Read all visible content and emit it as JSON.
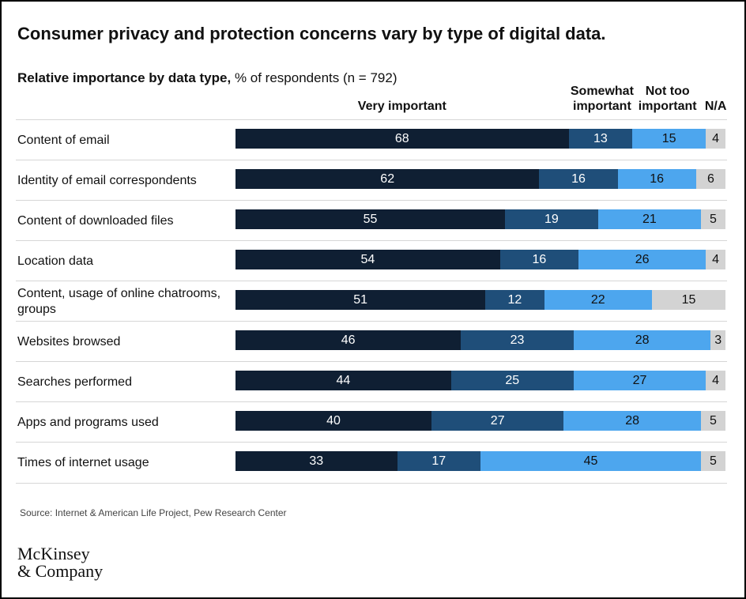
{
  "title": "Consumer privacy and protection concerns vary by type of digital data.",
  "subtitle": {
    "bold": "Relative importance by data type,",
    "normal": "% of respondents (n = 792)"
  },
  "colors": {
    "very_important": "#0f1f33",
    "somewhat_important": "#1f4e79",
    "not_too_important": "#4da6ee",
    "na": "#d3d3d3"
  },
  "chart_data": {
    "type": "bar",
    "orientation": "horizontal",
    "stacked": true,
    "categories": [
      "Content of email",
      "Identity of email correspondents",
      "Content of downloaded files",
      "Location data",
      "Content, usage of online chatrooms, groups",
      "Websites browsed",
      "Searches performed",
      "Apps and programs used",
      "Times of internet usage"
    ],
    "series": [
      {
        "name": "Very important",
        "values": [
          68,
          62,
          55,
          54,
          51,
          46,
          44,
          40,
          33
        ]
      },
      {
        "name": "Somewhat important",
        "values": [
          13,
          16,
          19,
          16,
          12,
          23,
          25,
          27,
          17
        ]
      },
      {
        "name": "Not too important",
        "values": [
          15,
          16,
          21,
          26,
          22,
          28,
          27,
          28,
          45
        ]
      },
      {
        "name": "N/A",
        "values": [
          4,
          6,
          5,
          4,
          15,
          3,
          4,
          5,
          5
        ]
      }
    ],
    "xlim": [
      0,
      100
    ],
    "grid": false
  },
  "legend_labels": {
    "very_important": "Very important",
    "somewhat_important_l1": "Somewhat",
    "somewhat_important_l2": "important",
    "not_too_important_l1": "Not too",
    "not_too_important_l2": "important",
    "na": "N/A"
  },
  "source": "Source: Internet & American Life Project, Pew Research Center",
  "logo": {
    "line1": "McKinsey",
    "line2": "& Company"
  }
}
